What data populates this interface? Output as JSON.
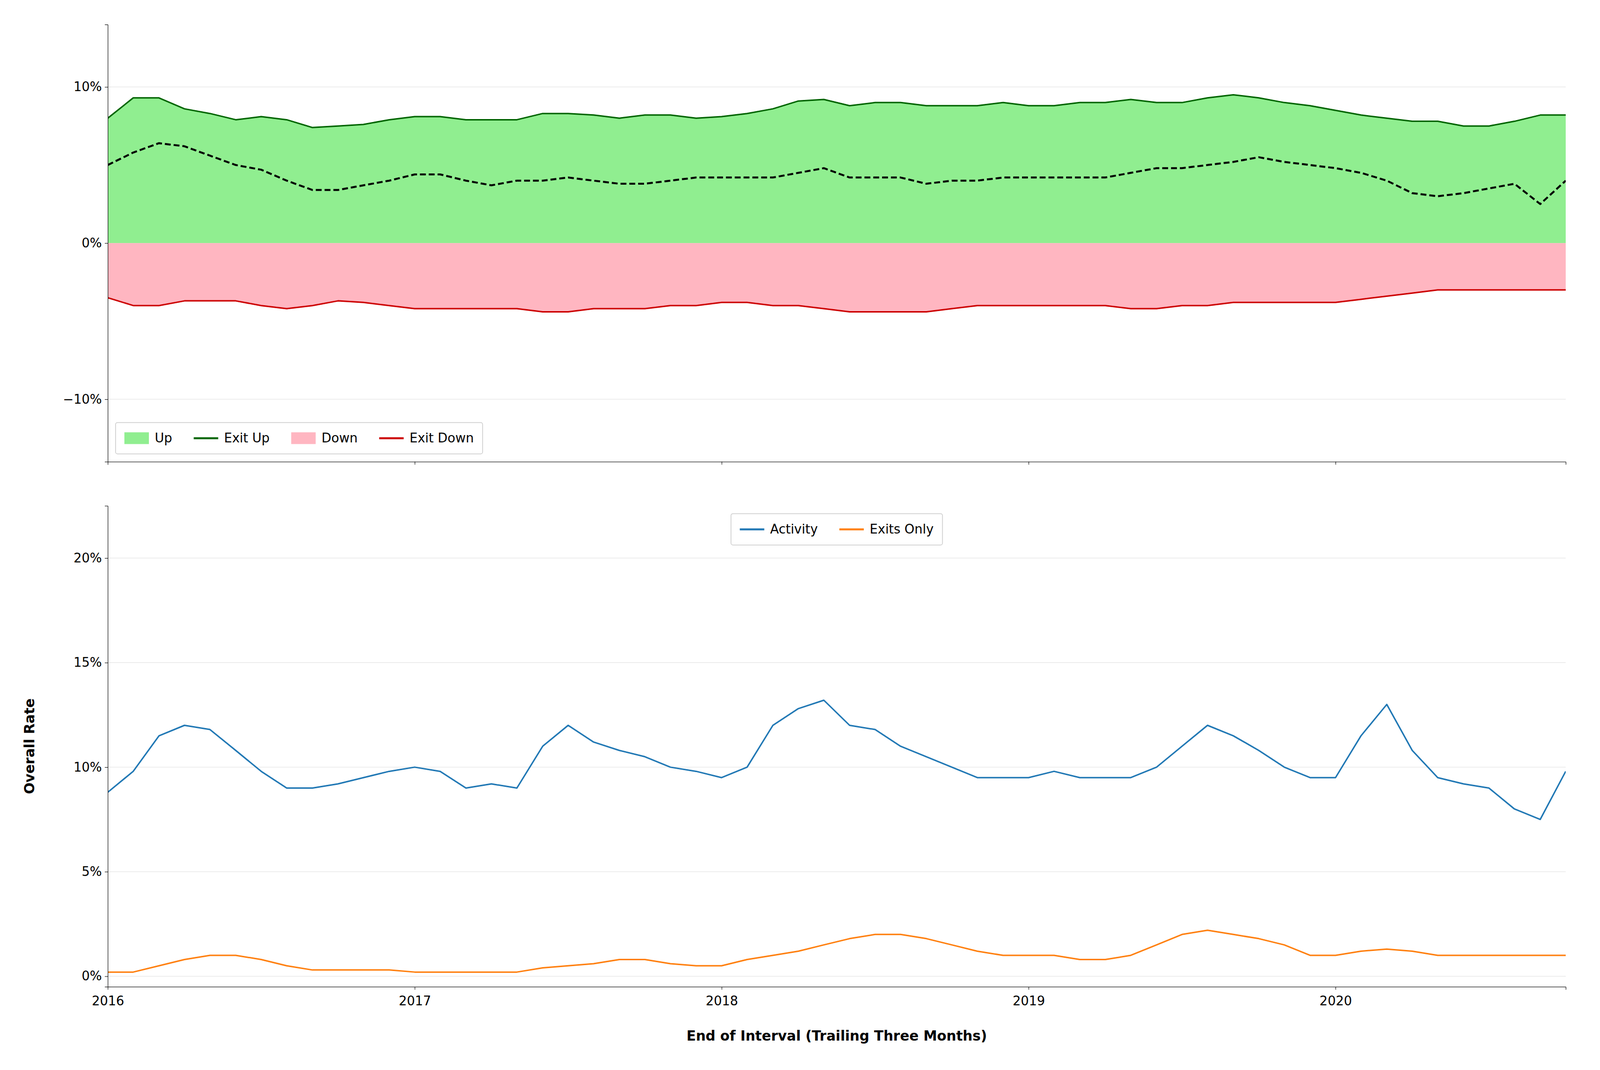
{
  "chart_data": [
    {
      "type": "line",
      "x": [
        2016.0,
        2016.083,
        2016.167,
        2016.25,
        2016.333,
        2016.417,
        2016.5,
        2016.583,
        2016.667,
        2016.75,
        2016.833,
        2016.917,
        2017.0,
        2017.083,
        2017.167,
        2017.25,
        2017.333,
        2017.417,
        2017.5,
        2017.583,
        2017.667,
        2017.75,
        2017.833,
        2017.917,
        2018.0,
        2018.083,
        2018.167,
        2018.25,
        2018.333,
        2018.417,
        2018.5,
        2018.583,
        2018.667,
        2018.75,
        2018.833,
        2018.917,
        2019.0,
        2019.083,
        2019.167,
        2019.25,
        2019.333,
        2019.417,
        2019.5,
        2019.583,
        2019.667,
        2019.75,
        2019.833,
        2019.917,
        2020.0,
        2020.083,
        2020.167,
        2020.25,
        2020.333,
        2020.417,
        2020.5,
        2020.583,
        2020.667,
        2020.75
      ],
      "xlim": [
        2016.0,
        2020.75
      ],
      "xticks": [
        2016,
        2017,
        2018,
        2019,
        2020
      ],
      "ylim": [
        -0.14,
        0.14
      ],
      "yticks": [
        {
          "value": -0.1,
          "label": "−10%"
        },
        {
          "value": 0.0,
          "label": "0%"
        },
        {
          "value": 0.1,
          "label": "10%"
        }
      ],
      "grid": true,
      "tick_labels": "y",
      "legend": "lower left",
      "series": [
        {
          "name": "Up",
          "type": "area",
          "color": "#90EE90",
          "values": [
            0.08,
            0.093,
            0.093,
            0.086,
            0.083,
            0.079,
            0.081,
            0.079,
            0.074,
            0.075,
            0.076,
            0.079,
            0.081,
            0.081,
            0.079,
            0.079,
            0.079,
            0.083,
            0.083,
            0.082,
            0.08,
            0.082,
            0.082,
            0.08,
            0.081,
            0.083,
            0.086,
            0.091,
            0.092,
            0.088,
            0.09,
            0.09,
            0.088,
            0.088,
            0.088,
            0.09,
            0.088,
            0.088,
            0.09,
            0.09,
            0.092,
            0.09,
            0.09,
            0.093,
            0.095,
            0.093,
            0.09,
            0.088,
            0.085,
            0.082,
            0.08,
            0.078,
            0.078,
            0.075,
            0.075,
            0.078,
            0.082,
            0.082
          ],
          "base": [
            0.0,
            0.0,
            0.0,
            0.0,
            0.0,
            0.0,
            0.0,
            0.0,
            0.0,
            0.0,
            0.0,
            0.0,
            0.0,
            0.0,
            0.0,
            0.0,
            0.0,
            0.0,
            0.0,
            0.0,
            0.0,
            0.0,
            0.0,
            0.0,
            0.0,
            0.0,
            0.0,
            0.0,
            0.0,
            0.0,
            0.0,
            0.0,
            0.0,
            0.0,
            0.0,
            0.0,
            0.0,
            0.0,
            0.0,
            0.0,
            0.0,
            0.0,
            0.0,
            0.0,
            0.0,
            0.0,
            0.0,
            0.0,
            0.0,
            0.0,
            0.0,
            0.0,
            0.0,
            0.0,
            0.0,
            0.0,
            0.0,
            0.0
          ]
        },
        {
          "name": "Exit Up",
          "type": "line",
          "color": "#006400",
          "values": [
            0.08,
            0.093,
            0.093,
            0.086,
            0.083,
            0.079,
            0.081,
            0.079,
            0.074,
            0.075,
            0.076,
            0.079,
            0.081,
            0.081,
            0.079,
            0.079,
            0.079,
            0.083,
            0.083,
            0.082,
            0.08,
            0.082,
            0.082,
            0.08,
            0.081,
            0.083,
            0.086,
            0.091,
            0.092,
            0.088,
            0.09,
            0.09,
            0.088,
            0.088,
            0.088,
            0.09,
            0.088,
            0.088,
            0.09,
            0.09,
            0.092,
            0.09,
            0.09,
            0.093,
            0.095,
            0.093,
            0.09,
            0.088,
            0.085,
            0.082,
            0.08,
            0.078,
            0.078,
            0.075,
            0.075,
            0.078,
            0.082,
            0.082
          ]
        },
        {
          "name": "Down",
          "type": "area",
          "color": "#FFB6C1",
          "values": [
            -0.035,
            -0.04,
            -0.04,
            -0.037,
            -0.037,
            -0.037,
            -0.04,
            -0.042,
            -0.04,
            -0.037,
            -0.038,
            -0.04,
            -0.042,
            -0.042,
            -0.042,
            -0.042,
            -0.042,
            -0.044,
            -0.044,
            -0.042,
            -0.042,
            -0.042,
            -0.04,
            -0.04,
            -0.038,
            -0.038,
            -0.04,
            -0.04,
            -0.042,
            -0.044,
            -0.044,
            -0.044,
            -0.044,
            -0.042,
            -0.04,
            -0.04,
            -0.04,
            -0.04,
            -0.04,
            -0.04,
            -0.042,
            -0.042,
            -0.04,
            -0.04,
            -0.038,
            -0.038,
            -0.038,
            -0.038,
            -0.038,
            -0.036,
            -0.034,
            -0.032,
            -0.03,
            -0.03,
            -0.03,
            -0.03,
            -0.03,
            -0.03
          ],
          "base": [
            0.0,
            0.0,
            0.0,
            0.0,
            0.0,
            0.0,
            0.0,
            0.0,
            0.0,
            0.0,
            0.0,
            0.0,
            0.0,
            0.0,
            0.0,
            0.0,
            0.0,
            0.0,
            0.0,
            0.0,
            0.0,
            0.0,
            0.0,
            0.0,
            0.0,
            0.0,
            0.0,
            0.0,
            0.0,
            0.0,
            0.0,
            0.0,
            0.0,
            0.0,
            0.0,
            0.0,
            0.0,
            0.0,
            0.0,
            0.0,
            0.0,
            0.0,
            0.0,
            0.0,
            0.0,
            0.0,
            0.0,
            0.0,
            0.0,
            0.0,
            0.0,
            0.0,
            0.0,
            0.0,
            0.0,
            0.0,
            0.0,
            0.0
          ]
        },
        {
          "name": "Exit Down",
          "type": "line",
          "color": "#CC0000",
          "values": [
            -0.035,
            -0.04,
            -0.04,
            -0.037,
            -0.037,
            -0.037,
            -0.04,
            -0.042,
            -0.04,
            -0.037,
            -0.038,
            -0.04,
            -0.042,
            -0.042,
            -0.042,
            -0.042,
            -0.042,
            -0.044,
            -0.044,
            -0.042,
            -0.042,
            -0.042,
            -0.04,
            -0.04,
            -0.038,
            -0.038,
            -0.04,
            -0.04,
            -0.042,
            -0.044,
            -0.044,
            -0.044,
            -0.044,
            -0.042,
            -0.04,
            -0.04,
            -0.04,
            -0.04,
            -0.04,
            -0.04,
            -0.042,
            -0.042,
            -0.04,
            -0.04,
            -0.038,
            -0.038,
            -0.038,
            -0.038,
            -0.038,
            -0.036,
            -0.034,
            -0.032,
            -0.03,
            -0.03,
            -0.03,
            -0.03,
            -0.03,
            -0.03
          ]
        },
        {
          "type": "line",
          "color": "#000000",
          "line_style": "dashed",
          "values": [
            0.05,
            0.058,
            0.064,
            0.062,
            0.056,
            0.05,
            0.047,
            0.04,
            0.034,
            0.034,
            0.037,
            0.04,
            0.044,
            0.044,
            0.04,
            0.037,
            0.04,
            0.04,
            0.042,
            0.04,
            0.038,
            0.038,
            0.04,
            0.042,
            0.042,
            0.042,
            0.042,
            0.045,
            0.048,
            0.042,
            0.042,
            0.042,
            0.038,
            0.04,
            0.04,
            0.042,
            0.042,
            0.042,
            0.042,
            0.042,
            0.045,
            0.048,
            0.048,
            0.05,
            0.052,
            0.055,
            0.052,
            0.05,
            0.048,
            0.045,
            0.04,
            0.032,
            0.03,
            0.032,
            0.035,
            0.038,
            0.025,
            0.04
          ]
        }
      ]
    },
    {
      "type": "line",
      "x": [
        2016.0,
        2016.083,
        2016.167,
        2016.25,
        2016.333,
        2016.417,
        2016.5,
        2016.583,
        2016.667,
        2016.75,
        2016.833,
        2016.917,
        2017.0,
        2017.083,
        2017.167,
        2017.25,
        2017.333,
        2017.417,
        2017.5,
        2017.583,
        2017.667,
        2017.75,
        2017.833,
        2017.917,
        2018.0,
        2018.083,
        2018.167,
        2018.25,
        2018.333,
        2018.417,
        2018.5,
        2018.583,
        2018.667,
        2018.75,
        2018.833,
        2018.917,
        2019.0,
        2019.083,
        2019.167,
        2019.25,
        2019.333,
        2019.417,
        2019.5,
        2019.583,
        2019.667,
        2019.75,
        2019.833,
        2019.917,
        2020.0,
        2020.083,
        2020.167,
        2020.25,
        2020.333,
        2020.417,
        2020.5,
        2020.583,
        2020.667,
        2020.75
      ],
      "xlim": [
        2016.0,
        2020.75
      ],
      "xticks": [
        2016,
        2017,
        2018,
        2019,
        2020
      ],
      "ylim": [
        -0.005,
        0.225
      ],
      "yticks": [
        {
          "value": 0.0,
          "label": "0%"
        },
        {
          "value": 0.05,
          "label": "5%"
        },
        {
          "value": 0.1,
          "label": "10%"
        },
        {
          "value": 0.15,
          "label": "15%"
        },
        {
          "value": 0.2,
          "label": "20%"
        }
      ],
      "grid": true,
      "legend": "upper center",
      "xlabel": "End of Interval (Trailing Three Months)",
      "ylabel": "Overall Rate",
      "series": [
        {
          "name": "Activity",
          "values": [
            0.088,
            0.098,
            0.115,
            0.12,
            0.118,
            0.108,
            0.098,
            0.09,
            0.09,
            0.092,
            0.095,
            0.098,
            0.1,
            0.098,
            0.09,
            0.092,
            0.09,
            0.11,
            0.12,
            0.112,
            0.108,
            0.105,
            0.1,
            0.098,
            0.095,
            0.1,
            0.12,
            0.128,
            0.132,
            0.12,
            0.118,
            0.11,
            0.105,
            0.1,
            0.095,
            0.095,
            0.095,
            0.098,
            0.095,
            0.095,
            0.095,
            0.1,
            0.11,
            0.12,
            0.115,
            0.108,
            0.1,
            0.095,
            0.095,
            0.115,
            0.13,
            0.108,
            0.095,
            0.092,
            0.09,
            0.08,
            0.075,
            0.098
          ]
        },
        {
          "name": "Exits Only",
          "values": [
            0.002,
            0.002,
            0.005,
            0.008,
            0.01,
            0.01,
            0.008,
            0.005,
            0.003,
            0.003,
            0.003,
            0.003,
            0.002,
            0.002,
            0.002,
            0.002,
            0.002,
            0.004,
            0.005,
            0.006,
            0.008,
            0.008,
            0.006,
            0.005,
            0.005,
            0.008,
            0.01,
            0.012,
            0.015,
            0.018,
            0.02,
            0.02,
            0.018,
            0.015,
            0.012,
            0.01,
            0.01,
            0.01,
            0.008,
            0.008,
            0.01,
            0.015,
            0.02,
            0.022,
            0.02,
            0.018,
            0.015,
            0.01,
            0.01,
            0.012,
            0.013,
            0.012,
            0.01,
            0.01,
            0.01,
            0.01,
            0.01,
            0.01
          ]
        }
      ]
    }
  ]
}
